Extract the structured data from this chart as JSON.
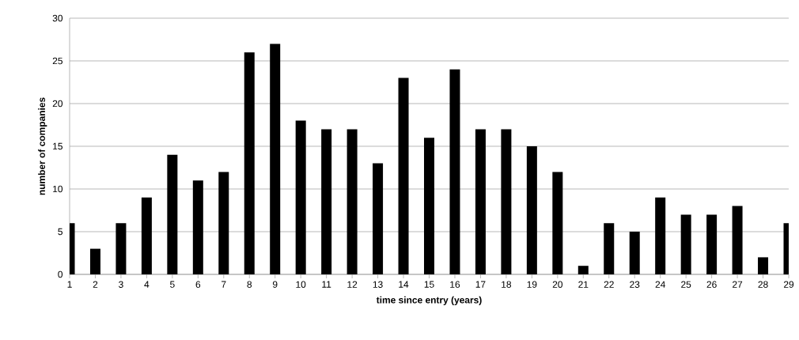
{
  "chart_data": {
    "type": "bar",
    "xlabel": "time since entry (years)",
    "ylabel": "number of companies",
    "x": [
      1,
      2,
      3,
      4,
      5,
      6,
      7,
      8,
      9,
      10,
      11,
      12,
      13,
      14,
      15,
      16,
      17,
      18,
      19,
      20,
      21,
      22,
      23,
      24,
      25,
      26,
      27,
      28,
      29
    ],
    "values": [
      6,
      3,
      6,
      9,
      14,
      11,
      12,
      26,
      27,
      18,
      17,
      17,
      13,
      23,
      16,
      24,
      17,
      17,
      15,
      12,
      1,
      6,
      5,
      9,
      7,
      7,
      8,
      2,
      6
    ],
    "color": "#000000",
    "xlim": [
      1,
      29
    ],
    "xticks": [
      1,
      2,
      3,
      4,
      5,
      6,
      7,
      8,
      9,
      10,
      11,
      12,
      13,
      14,
      15,
      16,
      17,
      18,
      19,
      20,
      21,
      22,
      23,
      24,
      25,
      26,
      27,
      28,
      29
    ],
    "ylim": [
      0,
      30
    ],
    "yticks": [
      0,
      5,
      10,
      15,
      20,
      25,
      30
    ],
    "grid": "y"
  }
}
